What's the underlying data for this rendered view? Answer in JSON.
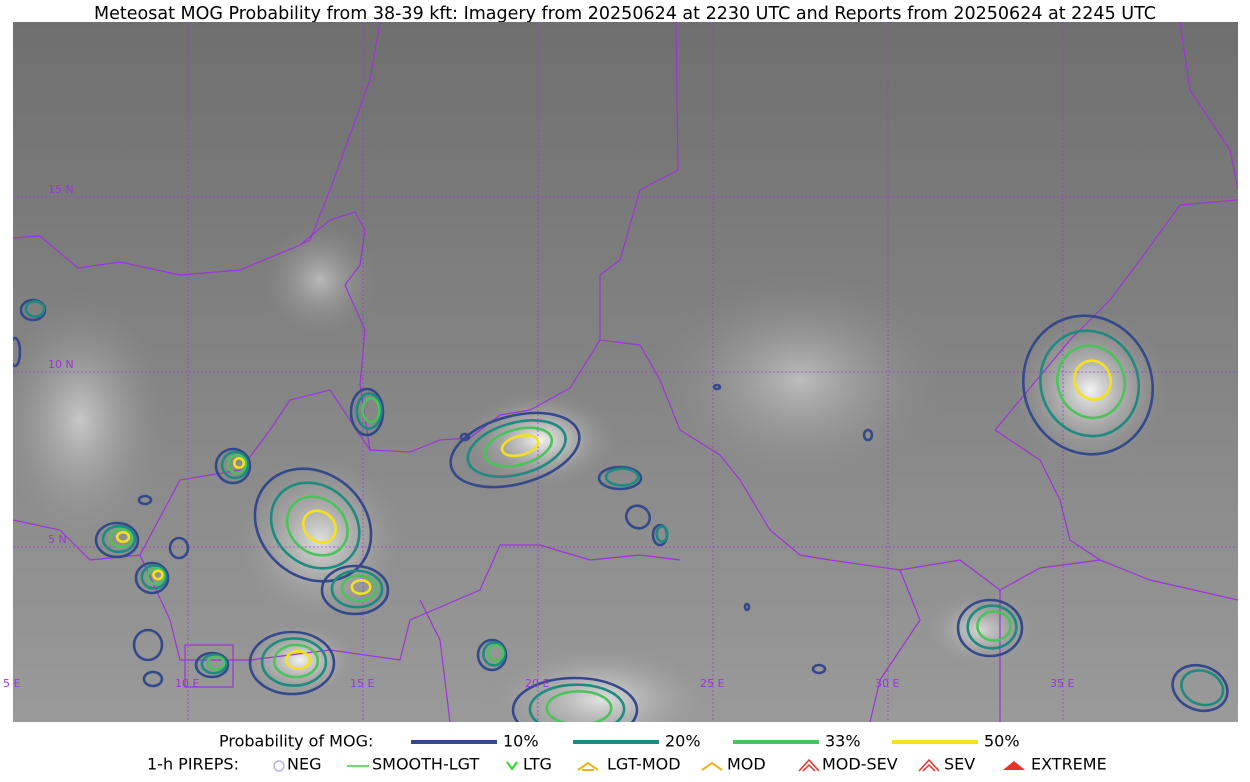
{
  "title": "Meteosat MOG Probability from 38-39 kft: Imagery from 20250624 at 2230 UTC and Reports from 20250624 at 2245 UTC",
  "grid_labels": {
    "latitudes": [
      "15 N",
      "10 N",
      "5 N"
    ],
    "longitudes": [
      "5 E",
      "10 E",
      "15 E",
      "20 E",
      "25 E",
      "30 E",
      "35 E"
    ]
  },
  "legend": {
    "probability": {
      "label": "Probability of MOG:",
      "items": [
        {
          "label": "10%",
          "color": "#34498a"
        },
        {
          "label": "20%",
          "color": "#1f8a80"
        },
        {
          "label": "33%",
          "color": "#4cc25c"
        },
        {
          "label": "50%",
          "color": "#f5e11c"
        }
      ]
    },
    "pireps": {
      "label": "1-h PIREPS:",
      "items": [
        {
          "label": "NEG",
          "color": "#b9b3ee"
        },
        {
          "label": "SMOOTH-LGT",
          "color": "#3fcf3f"
        },
        {
          "label": "LTG",
          "color": "#22dd22"
        },
        {
          "label": "LGT-MOD",
          "color": "#f2b41c"
        },
        {
          "label": "MOD",
          "color": "#f2b41c"
        },
        {
          "label": "MOD-SEV",
          "color": "#e8322a"
        },
        {
          "label": "SEV",
          "color": "#e8322a"
        },
        {
          "label": "EXTREME",
          "color": "#e8322a"
        }
      ]
    }
  }
}
